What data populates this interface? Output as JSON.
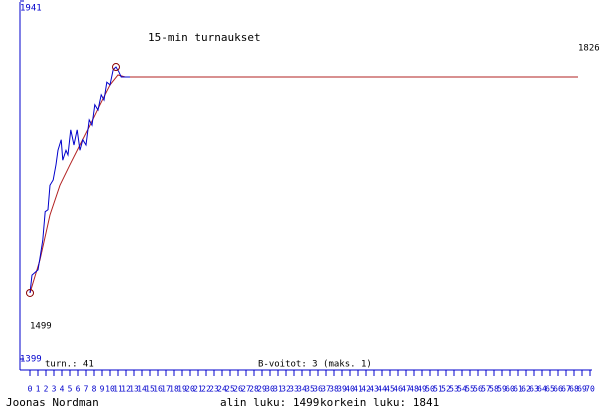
{
  "chart_data": {
    "type": "line",
    "title": "15-min turnaukset",
    "ylim": [
      1399,
      1941
    ],
    "yticks": [
      1399,
      1941
    ],
    "xlim": [
      0,
      70
    ],
    "xticks": [
      0,
      1,
      2,
      3,
      4,
      5,
      6,
      7,
      8,
      9,
      10,
      11,
      12,
      13,
      14,
      15,
      16,
      17,
      18,
      19,
      20,
      21,
      22,
      23,
      24,
      25,
      26,
      27,
      28,
      29,
      30,
      31,
      32,
      33,
      34,
      35,
      36,
      37,
      38,
      39,
      40,
      41,
      42,
      43,
      44,
      45,
      46,
      47,
      48,
      49,
      50,
      51,
      52,
      53,
      54,
      55,
      56,
      57,
      58,
      59,
      60,
      61,
      62,
      63,
      64,
      65,
      66,
      67,
      68,
      69,
      70
    ],
    "annotations": [
      "1826",
      "1499",
      "turn.: 41",
      "B-voitot: 3 (maks. 1)"
    ],
    "footer": [
      "Joonas Nordman",
      "alin luku: 1499",
      "korkein luku: 1841"
    ],
    "series": [
      {
        "color": "#0000cc",
        "x": [
          0,
          0.25,
          1,
          1.25,
          1.6,
          1.9,
          2.25,
          2.5,
          2.9,
          3.25,
          3.5,
          3.9,
          4.1,
          4.5,
          4.75,
          5.1,
          5.5,
          5.9,
          6.25,
          6.6,
          7,
          7.4,
          7.75,
          8.1,
          8.5,
          8.9,
          9.25,
          9.6,
          10,
          10.4,
          10.75,
          11.1,
          11.4,
          12.5
        ],
        "values": [
          1499,
          1526,
          1534,
          1552,
          1579,
          1622,
          1625,
          1662,
          1670,
          1693,
          1715,
          1731,
          1700,
          1715,
          1708,
          1746,
          1723,
          1746,
          1715,
          1731,
          1723,
          1761,
          1753,
          1784,
          1776,
          1799,
          1791,
          1818,
          1814,
          1837,
          1841,
          1834,
          1826,
          1826
        ]
      },
      {
        "color": "#b22222",
        "x": [
          0,
          1.25,
          2.5,
          3.75,
          5,
          6.25,
          7.5,
          8.75,
          10,
          11,
          11.9,
          68.5
        ],
        "values": [
          1499,
          1549,
          1617,
          1662,
          1693,
          1723,
          1753,
          1784,
          1814,
          1829,
          1826,
          1826
        ]
      }
    ]
  }
}
